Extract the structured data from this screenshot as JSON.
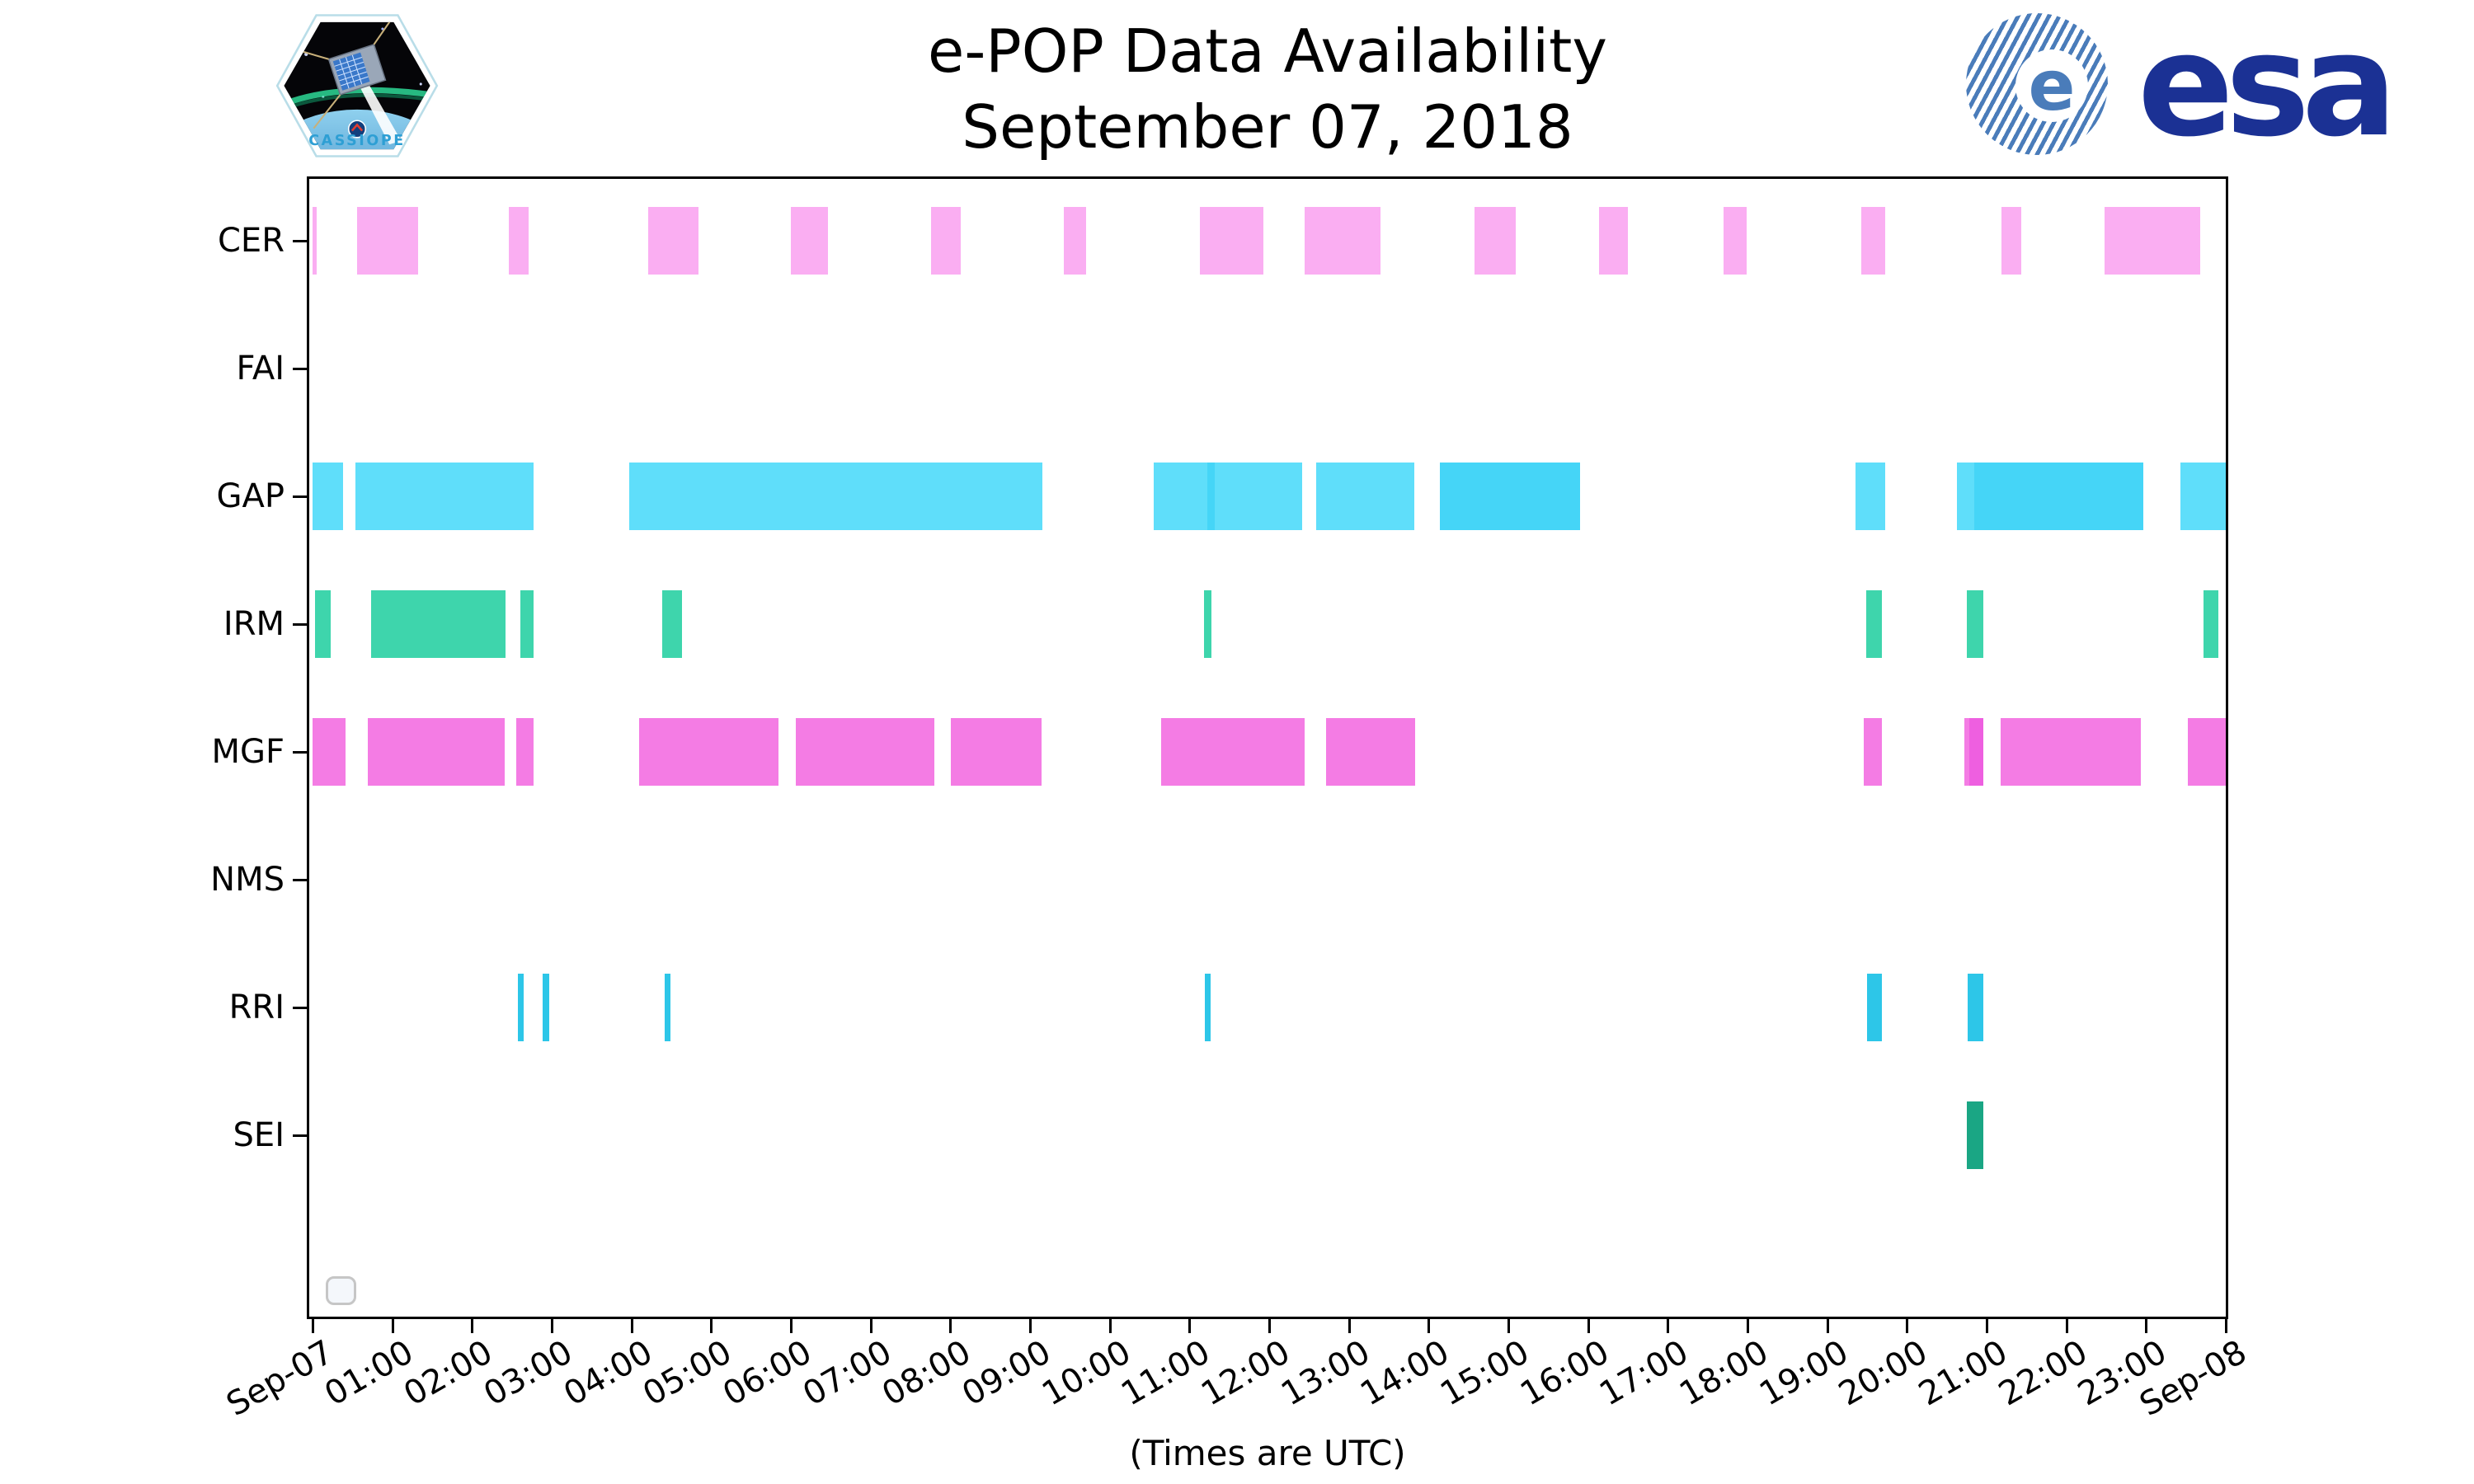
{
  "header": {
    "title_line1": "e-POP Data Availability",
    "title_line2": "September 07, 2018",
    "cassiope_label": "CASSIOPE",
    "esa_e": "e",
    "esa_wordmark": "esa"
  },
  "chart_data": {
    "type": "bar",
    "variant": "horizontal-gantt-availability-timeline",
    "title": "e-POP Data Availability",
    "subtitle": "September 07, 2018",
    "xlabel": "(Times are UTC)",
    "x_axis": {
      "start_label": "Sep-07",
      "end_label": "Sep-08",
      "span_hours": 24,
      "tick_interval_hours": 1,
      "tick_labels": [
        "Sep-07",
        "01:00",
        "02:00",
        "03:00",
        "04:00",
        "05:00",
        "06:00",
        "07:00",
        "08:00",
        "09:00",
        "10:00",
        "11:00",
        "12:00",
        "13:00",
        "14:00",
        "15:00",
        "16:00",
        "17:00",
        "18:00",
        "19:00",
        "20:00",
        "21:00",
        "22:00",
        "23:00",
        "Sep-08"
      ]
    },
    "y_axis": {
      "instruments": [
        "CER",
        "FAI",
        "GAP",
        "IRM",
        "MGF",
        "NMS",
        "RRI",
        "SEI"
      ]
    },
    "legend": {
      "empty_box": true
    },
    "grid": "off",
    "colors": {
      "CER": "#faaef2",
      "GAP": "#5fdefa",
      "GAP_dark": "#45d5f7",
      "IRM": "#3ed5ac",
      "MGF": "#f47ce4",
      "MGF_dark": "#ee5fe0",
      "RRI": "#2dc6e8",
      "SEI": "#1aa684",
      "axis": "#000000"
    },
    "rows": [
      {
        "label": "CER",
        "color": "#faaef2",
        "intervals": [
          [
            0.0,
            0.05
          ],
          [
            0.56,
            1.32
          ],
          [
            2.46,
            2.71
          ],
          [
            4.21,
            4.84
          ],
          [
            6.0,
            6.47
          ],
          [
            7.76,
            8.13
          ],
          [
            9.42,
            9.7
          ],
          [
            11.13,
            11.93
          ],
          [
            12.44,
            13.4
          ],
          [
            14.58,
            15.09
          ],
          [
            16.14,
            16.5
          ],
          [
            17.7,
            17.99
          ],
          [
            19.43,
            19.73
          ],
          [
            21.19,
            21.43
          ],
          [
            22.48,
            23.68
          ]
        ]
      },
      {
        "label": "FAI",
        "color": "#fce08a",
        "intervals": []
      },
      {
        "label": "GAP",
        "color": "#5fdefa",
        "color_dark": "#45d5f7",
        "intervals": [
          [
            0.0,
            0.38
          ],
          [
            0.54,
            2.77
          ],
          [
            3.97,
            9.16
          ],
          [
            10.55,
            11.22
          ],
          [
            11.22,
            11.32,
            "dark"
          ],
          [
            11.32,
            12.41
          ],
          [
            12.59,
            13.82
          ],
          [
            14.14,
            15.9,
            "dark"
          ],
          [
            19.36,
            19.73
          ],
          [
            20.63,
            20.84
          ],
          [
            20.84,
            22.97,
            "dark"
          ],
          [
            23.43,
            24.0
          ]
        ]
      },
      {
        "label": "IRM",
        "color": "#3ed5ac",
        "intervals": [
          [
            0.03,
            0.23
          ],
          [
            0.73,
            2.42
          ],
          [
            2.61,
            2.77
          ],
          [
            4.39,
            4.63
          ],
          [
            11.18,
            11.28
          ],
          [
            19.49,
            19.69
          ],
          [
            20.75,
            20.96
          ],
          [
            23.72,
            23.91
          ]
        ]
      },
      {
        "label": "MGF",
        "color": "#f47ce4",
        "color_dark": "#ee5fe0",
        "intervals": [
          [
            0.0,
            0.41
          ],
          [
            0.69,
            2.41
          ],
          [
            2.56,
            2.77
          ],
          [
            4.1,
            5.84
          ],
          [
            6.06,
            7.8
          ],
          [
            8.01,
            9.14
          ],
          [
            10.64,
            12.45
          ],
          [
            12.71,
            13.83
          ],
          [
            19.46,
            19.69
          ],
          [
            20.72,
            20.78
          ],
          [
            20.78,
            20.96,
            "dark"
          ],
          [
            21.18,
            22.93
          ],
          [
            23.52,
            24.0
          ]
        ]
      },
      {
        "label": "NMS",
        "color": "#b0b0b0",
        "intervals": []
      },
      {
        "label": "RRI",
        "color": "#2dc6e8",
        "intervals": [
          [
            2.58,
            2.65
          ],
          [
            2.89,
            2.97
          ],
          [
            4.42,
            4.49
          ],
          [
            11.19,
            11.27
          ],
          [
            19.5,
            19.69
          ],
          [
            20.76,
            20.96
          ]
        ]
      },
      {
        "label": "SEI",
        "color": "#1aa684",
        "intervals": [
          [
            20.75,
            20.96
          ]
        ]
      }
    ]
  }
}
